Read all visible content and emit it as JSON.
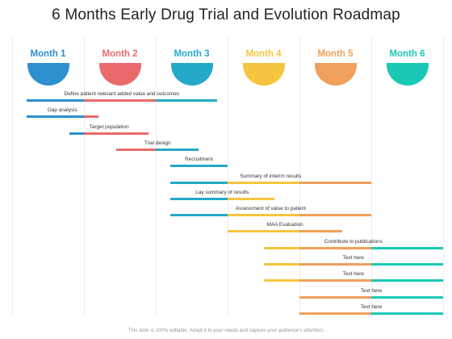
{
  "title": "6 Months Early Drug Trial and Evolution Roadmap",
  "months": [
    {
      "label": "Month 1",
      "color": "#2e8fce"
    },
    {
      "label": "Month 2",
      "color": "#ea6a6c"
    },
    {
      "label": "Month 3",
      "color": "#25a9c8"
    },
    {
      "label": "Month 4",
      "color": "#f6c53f"
    },
    {
      "label": "Month 5",
      "color": "#f0a05a"
    },
    {
      "label": "Month 6",
      "color": "#19c9b6"
    }
  ],
  "tasks": [
    {
      "label": "Define patient relevant added value and outcomes",
      "start": 0.2,
      "end": 2.85
    },
    {
      "label": "Gap analysis",
      "start": 0.2,
      "end": 1.2
    },
    {
      "label": "Target population",
      "start": 0.8,
      "end": 1.9
    },
    {
      "label": "Trial design",
      "start": 1.45,
      "end": 2.6
    },
    {
      "label": "Recruitment",
      "start": 2.2,
      "end": 3.0
    },
    {
      "label": "Summary of interim results",
      "start": 2.2,
      "end": 5.0
    },
    {
      "label": "Lay summary of results",
      "start": 2.2,
      "end": 3.65
    },
    {
      "label": "Assessment of value to patient",
      "start": 2.2,
      "end": 5.0
    },
    {
      "label": "MAA Evaluation",
      "start": 3.0,
      "end": 4.6
    },
    {
      "label": "Contribute to publications",
      "start": 3.5,
      "end": 6.0
    },
    {
      "label": "Text here",
      "start": 3.5,
      "end": 6.0
    },
    {
      "label": "Text here",
      "start": 3.5,
      "end": 6.0
    },
    {
      "label": "Text here",
      "start": 4.0,
      "end": 6.0
    },
    {
      "label": "Text here",
      "start": 4.0,
      "end": 6.0
    }
  ],
  "footer": "This slide is 100% editable. Adapt it to your needs and capture your audience's attention."
}
